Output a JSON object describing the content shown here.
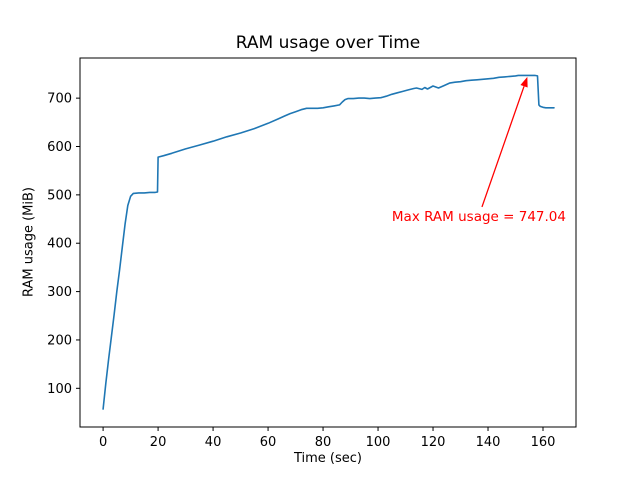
{
  "chart_data": {
    "type": "line",
    "title": "RAM usage over Time",
    "xlabel": "Time (sec)",
    "ylabel": "RAM usage (MiB)",
    "xlim": [
      -8.4,
      172
    ],
    "ylim": [
      20,
      783
    ],
    "xticks": [
      0,
      20,
      40,
      60,
      80,
      100,
      120,
      140,
      160
    ],
    "yticks": [
      100,
      200,
      300,
      400,
      500,
      600,
      700
    ],
    "grid": false,
    "legend": "none",
    "background_color": "#ffffff",
    "spine_color": "#000000",
    "series": [
      {
        "name": "RAM usage",
        "color": "#1f77b4",
        "x": [
          0,
          1,
          2,
          3,
          4,
          5,
          6,
          7,
          8,
          9,
          10,
          11,
          13,
          15,
          17,
          19,
          19.8,
          20,
          22,
          25,
          30,
          35,
          40,
          45,
          50,
          55,
          60,
          64,
          66,
          68,
          70,
          72,
          74,
          76,
          78,
          80,
          82,
          84,
          86,
          87,
          88,
          89,
          91,
          93,
          95,
          97,
          99,
          101,
          103,
          105,
          107,
          109,
          111,
          113,
          114,
          116,
          117,
          118,
          120,
          122,
          124,
          126,
          128,
          130,
          132,
          134,
          136,
          138,
          140,
          142,
          144,
          146,
          148,
          150,
          151,
          153,
          155,
          157,
          158,
          158.5,
          159,
          160,
          161,
          162,
          163,
          164
        ],
        "y": [
          57,
          110,
          160,
          205,
          252,
          300,
          345,
          392,
          440,
          478,
          497,
          503,
          504,
          504,
          505,
          505,
          506,
          578,
          581,
          586,
          595,
          603,
          611,
          620,
          628,
          637,
          648,
          658,
          663,
          668,
          672,
          676,
          679,
          679,
          679,
          680,
          682,
          684,
          686,
          692,
          697,
          699,
          699,
          700,
          700,
          699,
          700,
          701,
          704,
          708,
          711,
          714,
          717,
          720,
          721,
          718,
          722,
          719,
          725,
          721,
          726,
          731,
          733,
          734,
          736,
          737,
          738,
          739,
          740,
          741,
          743,
          744,
          745,
          746,
          747,
          747,
          747.04,
          747,
          746,
          686,
          683,
          681,
          680,
          680,
          680,
          680
        ]
      }
    ],
    "max_value": 747.04,
    "annotation": {
      "text": "Max RAM usage = 747.04",
      "color": "#ff0000",
      "arrow_tip": [
        154.3,
        744
      ],
      "arrow_tail": [
        137.8,
        475
      ],
      "text_pos": [
        136.7,
        455
      ]
    }
  }
}
